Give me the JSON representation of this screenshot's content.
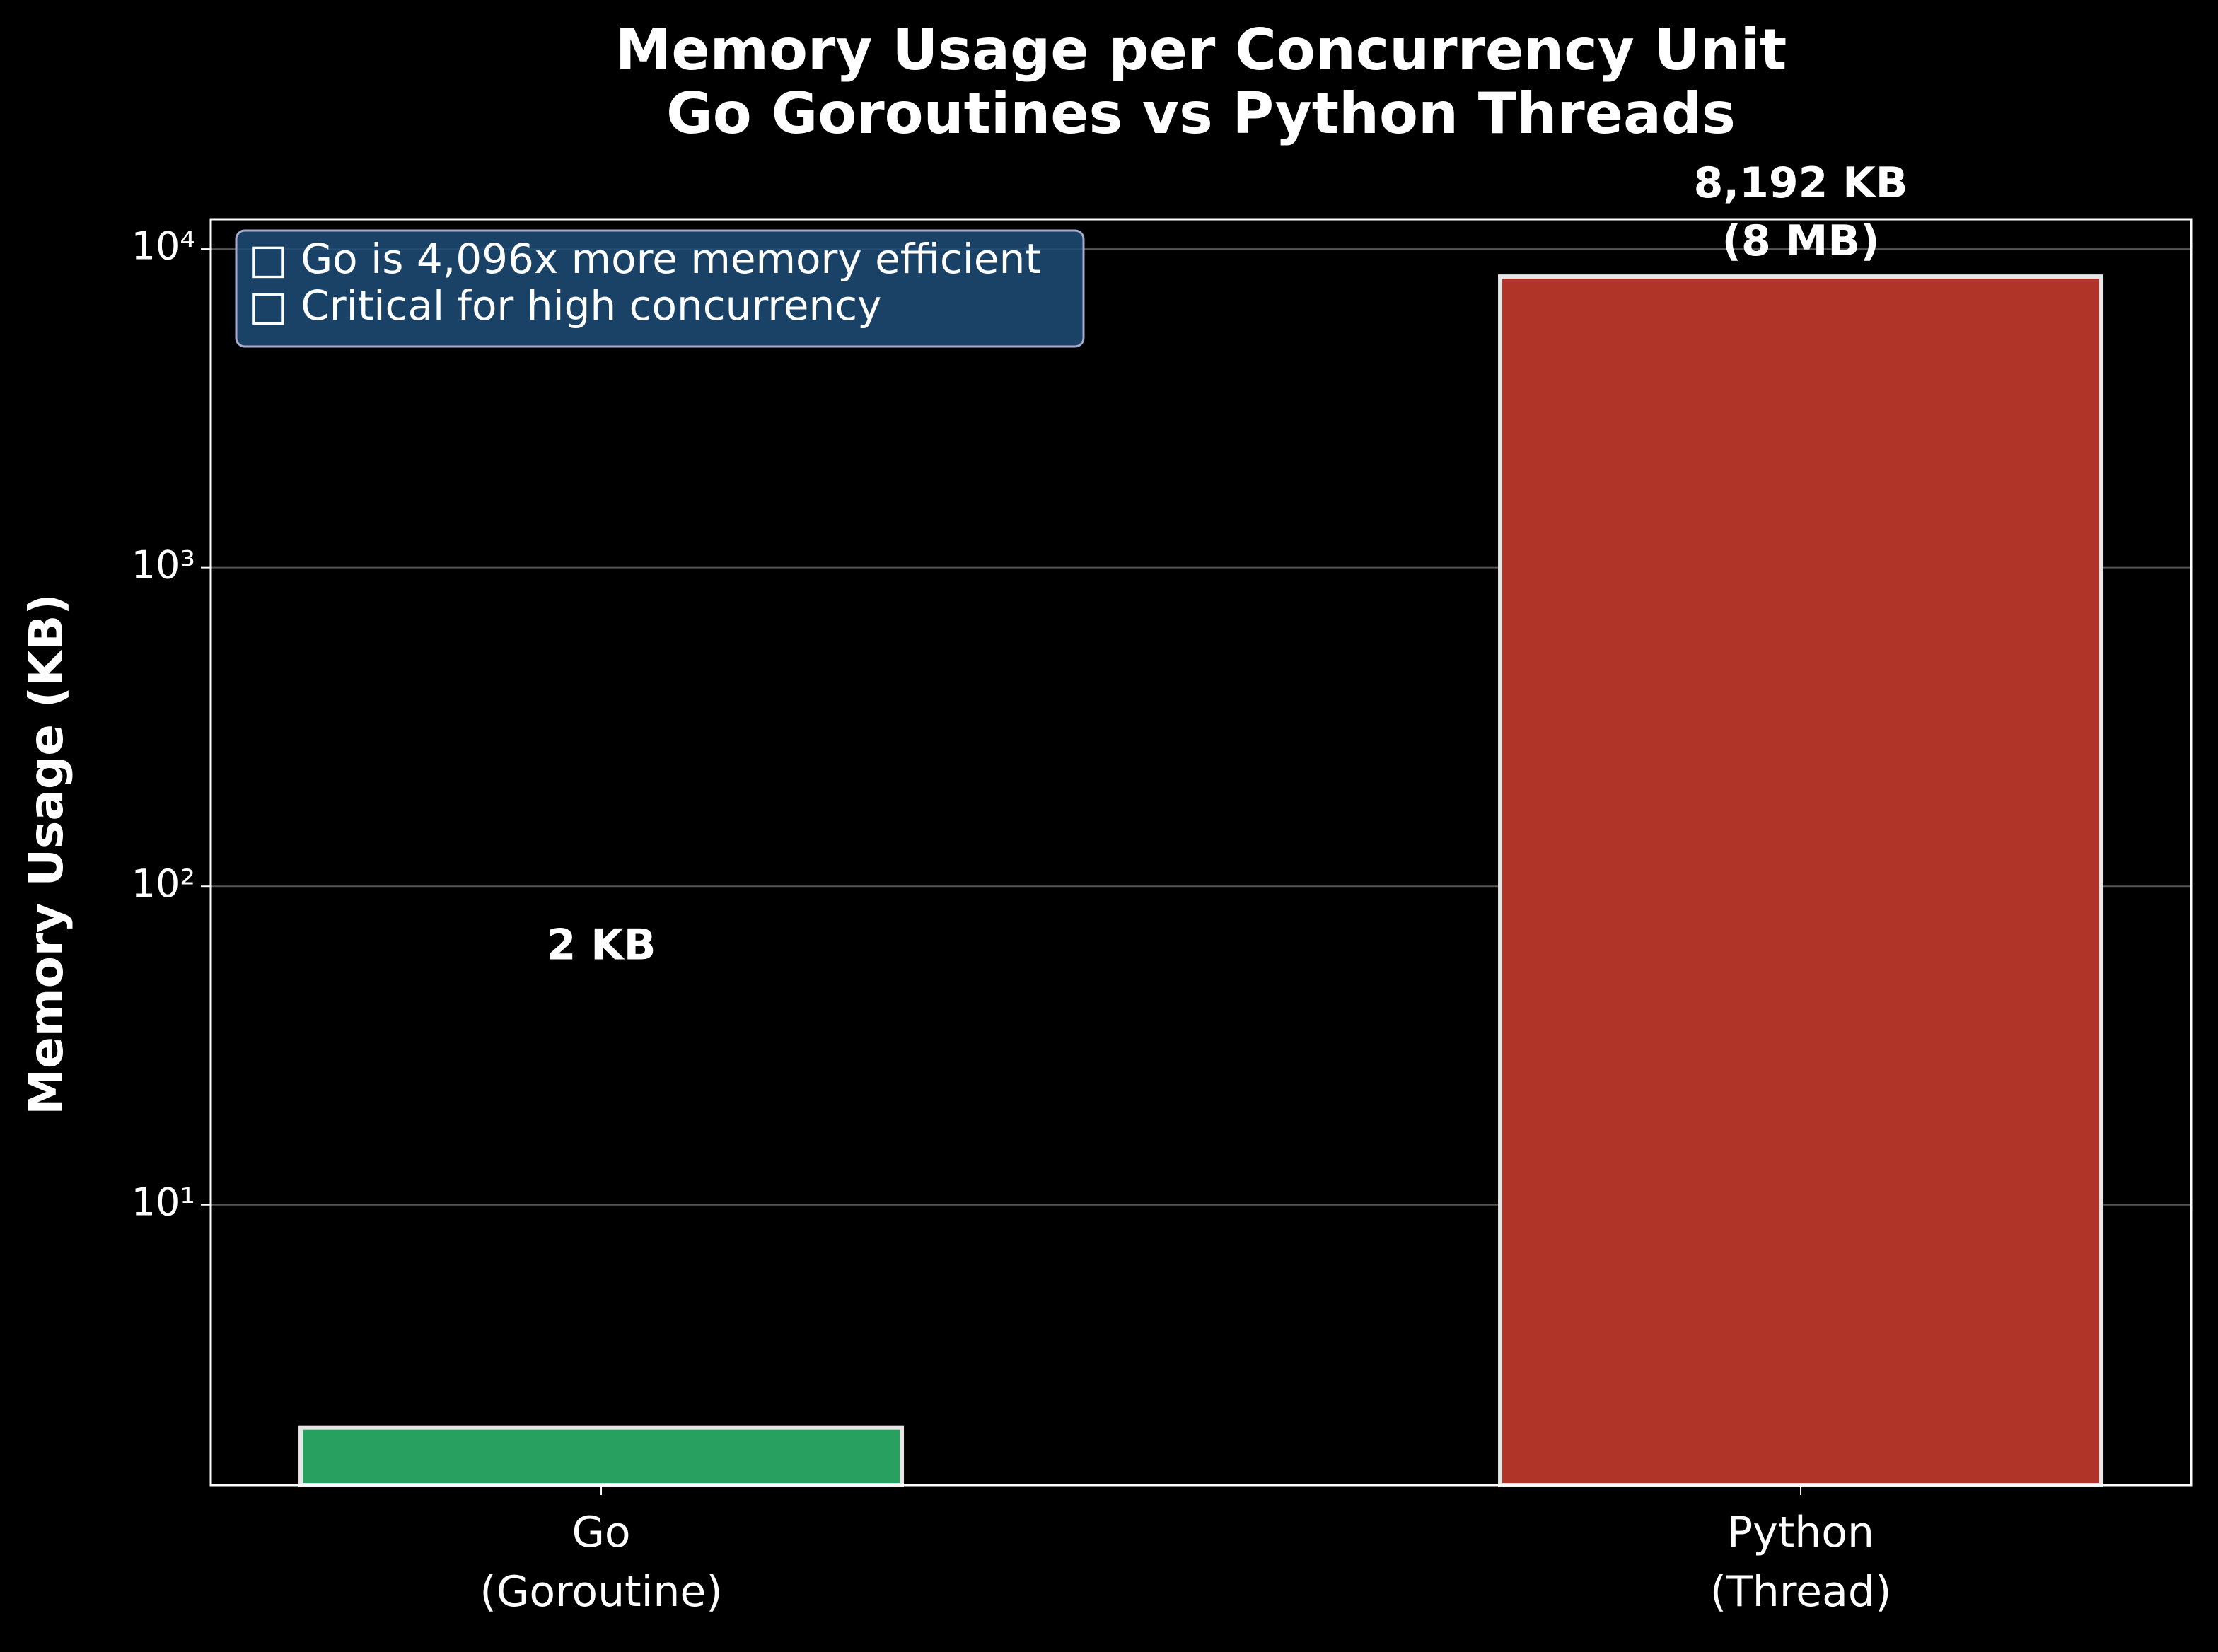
{
  "chart_data": {
    "type": "bar",
    "title": "Memory Usage per Concurrency Unit\nGo Goroutines vs Python Threads",
    "categories": [
      "Go\n(Goroutine)",
      "Python\n(Thread)"
    ],
    "values": [
      2,
      8192
    ],
    "value_labels": [
      "2 KB",
      "8,192 KB\n(8 MB)"
    ],
    "colors": [
      "#27a060",
      "#b03428"
    ],
    "edge_color": "#e6e6e6",
    "y_label": "Memory Usage (KB)",
    "y_scale": "log",
    "ylim": [
      1.32,
      12400
    ],
    "yticks": [
      {
        "value": 10,
        "label": "10¹"
      },
      {
        "value": 100,
        "label": "10²"
      },
      {
        "value": 1000,
        "label": "10³"
      },
      {
        "value": 10000,
        "label": "10⁴"
      }
    ],
    "grid": true,
    "annotation": "□ Go is 4,096x more memory efficient\n□ Critical for high concurrency"
  }
}
